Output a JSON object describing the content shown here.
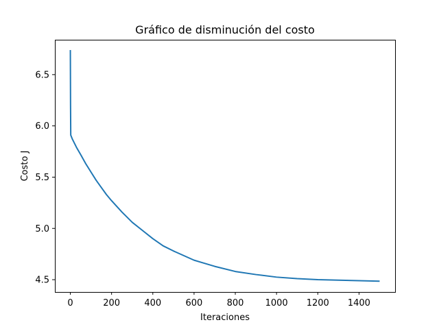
{
  "chart_data": {
    "type": "line",
    "title": "Gráfico de disminución del costo",
    "xlabel": "Iteraciones",
    "ylabel": "Costo J",
    "xlim": [
      -75,
      1575
    ],
    "ylim": [
      4.38,
      6.84
    ],
    "xticks": [
      0,
      200,
      400,
      600,
      800,
      1000,
      1200,
      1400
    ],
    "xtick_labels": [
      "0",
      "200",
      "400",
      "600",
      "800",
      "1000",
      "1200",
      "1400"
    ],
    "yticks": [
      4.5,
      5.0,
      5.5,
      6.0,
      6.5
    ],
    "ytick_labels": [
      "4.5",
      "5.0",
      "5.5",
      "6.0",
      "6.5"
    ],
    "grid": false,
    "line_color": "#1f77b4",
    "series": [
      {
        "x": [
          0,
          1,
          2,
          5,
          10,
          20,
          30,
          50,
          75,
          100,
          125,
          150,
          175,
          200,
          250,
          300,
          350,
          400,
          450,
          500,
          600,
          700,
          800,
          900,
          1000,
          1100,
          1200,
          1300,
          1400,
          1500
        ],
        "y": [
          6.74,
          6.2,
          5.91,
          5.895,
          5.87,
          5.83,
          5.79,
          5.72,
          5.63,
          5.55,
          5.47,
          5.4,
          5.33,
          5.27,
          5.16,
          5.06,
          4.98,
          4.9,
          4.83,
          4.78,
          4.69,
          4.63,
          4.58,
          4.55,
          4.525,
          4.51,
          4.5,
          4.495,
          4.49,
          4.485
        ]
      }
    ]
  }
}
